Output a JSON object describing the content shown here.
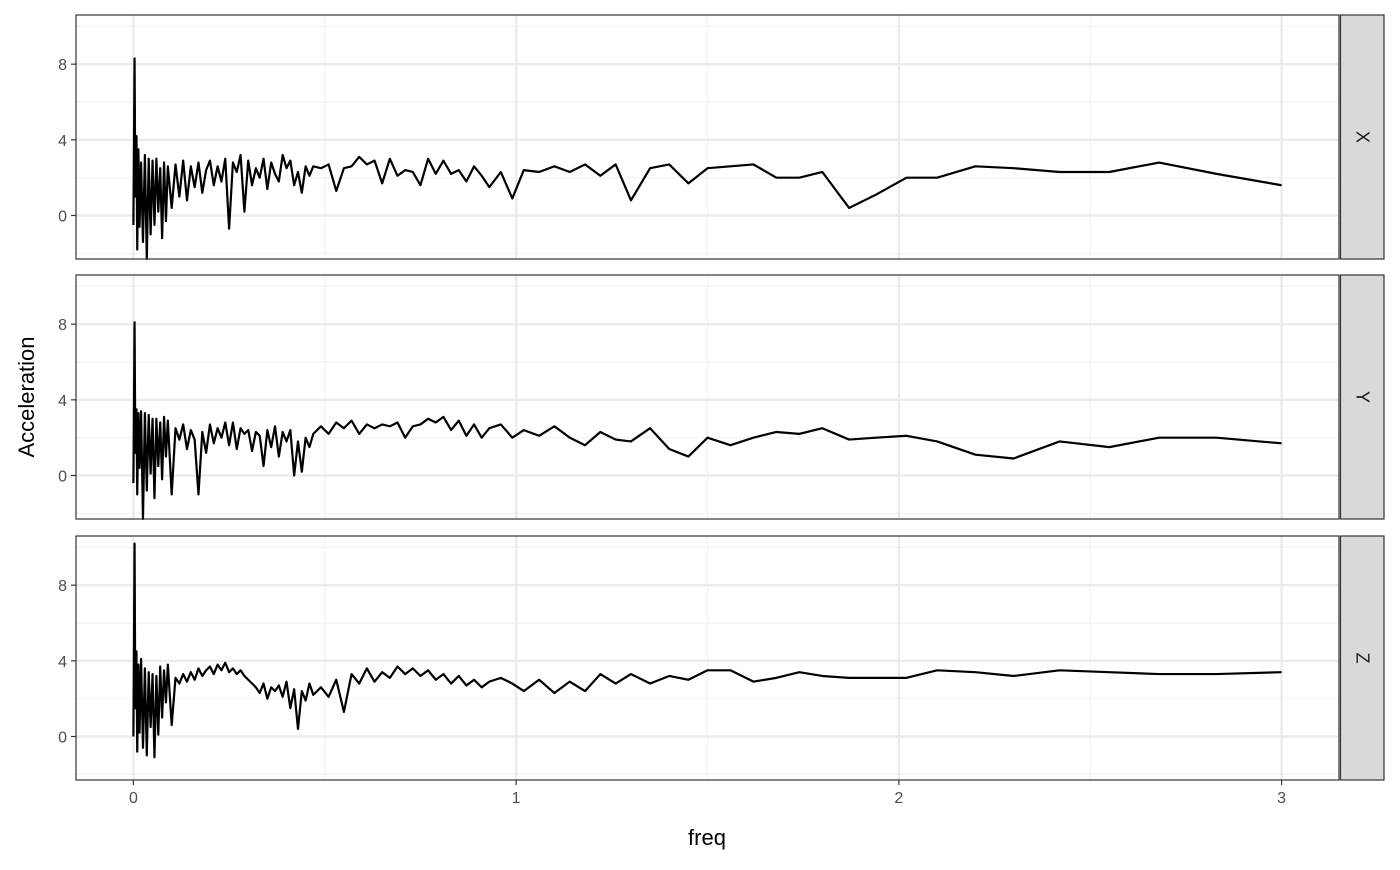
{
  "chart_data": {
    "type": "line",
    "layout": "faceted-rows",
    "xlabel": "freq",
    "ylabel": "Acceleration",
    "xlim": [
      -0.15,
      3.15
    ],
    "ylim": [
      -2.3,
      10.6
    ],
    "x_ticks": [
      0,
      1,
      2,
      3
    ],
    "x_tick_labels": [
      "0",
      "1",
      "2",
      "3"
    ],
    "y_ticks": [
      0,
      4,
      8
    ],
    "y_tick_labels": [
      "0",
      "4",
      "8"
    ],
    "grid": true,
    "legend": "none",
    "line_color": "#000000",
    "strip_color": "#d9d9d9",
    "panels": [
      {
        "strip": "X",
        "series": [
          {
            "x": [
              0.0,
              0.003,
              0.005,
              0.008,
              0.01,
              0.013,
              0.016,
              0.02,
              0.025,
              0.03,
              0.035,
              0.04,
              0.045,
              0.05,
              0.055,
              0.06,
              0.065,
              0.07,
              0.075,
              0.08,
              0.085,
              0.09,
              0.1,
              0.11,
              0.12,
              0.13,
              0.14,
              0.15,
              0.16,
              0.17,
              0.18,
              0.19,
              0.2,
              0.21,
              0.22,
              0.23,
              0.24,
              0.25,
              0.26,
              0.27,
              0.28,
              0.29,
              0.3,
              0.31,
              0.32,
              0.33,
              0.34,
              0.35,
              0.36,
              0.37,
              0.38,
              0.39,
              0.4,
              0.41,
              0.42,
              0.43,
              0.44,
              0.45,
              0.46,
              0.47,
              0.49,
              0.51,
              0.53,
              0.55,
              0.57,
              0.59,
              0.61,
              0.63,
              0.65,
              0.67,
              0.69,
              0.71,
              0.73,
              0.75,
              0.77,
              0.79,
              0.81,
              0.83,
              0.85,
              0.87,
              0.89,
              0.91,
              0.93,
              0.96,
              0.99,
              1.02,
              1.06,
              1.1,
              1.14,
              1.18,
              1.22,
              1.26,
              1.3,
              1.35,
              1.4,
              1.45,
              1.5,
              1.56,
              1.62,
              1.68,
              1.74,
              1.8,
              1.87,
              1.94,
              2.02,
              2.1,
              2.2,
              2.3,
              2.42,
              2.55,
              2.68,
              2.83,
              3.0
            ],
            "y": [
              -0.5,
              8.3,
              1.0,
              4.2,
              -1.8,
              3.5,
              -0.6,
              2.8,
              -1.4,
              3.2,
              -2.3,
              3.0,
              -1.0,
              2.9,
              -0.5,
              3.0,
              0.2,
              2.5,
              -1.2,
              2.8,
              -0.3,
              2.6,
              0.4,
              2.7,
              1.0,
              2.9,
              0.8,
              2.6,
              1.5,
              2.8,
              1.2,
              2.4,
              2.9,
              1.6,
              2.6,
              1.8,
              3.0,
              -0.7,
              2.8,
              2.3,
              3.2,
              0.2,
              2.9,
              1.6,
              2.5,
              2.0,
              3.0,
              1.4,
              2.8,
              2.2,
              1.8,
              3.2,
              2.5,
              2.9,
              1.6,
              2.3,
              1.2,
              2.6,
              2.1,
              2.6,
              2.5,
              2.7,
              1.3,
              2.5,
              2.6,
              3.1,
              2.7,
              2.9,
              1.7,
              3.0,
              2.1,
              2.4,
              2.3,
              1.6,
              3.0,
              2.2,
              2.9,
              2.2,
              2.4,
              1.8,
              2.6,
              2.1,
              1.5,
              2.3,
              0.9,
              2.4,
              2.3,
              2.6,
              2.3,
              2.7,
              2.1,
              2.7,
              0.8,
              2.5,
              2.7,
              1.7,
              2.5,
              2.6,
              2.7,
              2.0,
              2.0,
              2.3,
              0.4,
              1.1,
              2.0,
              2.0,
              2.6,
              2.5,
              2.3,
              2.3,
              2.8,
              2.2,
              1.6
            ]
          }
        ]
      },
      {
        "strip": "Y",
        "series": [
          {
            "x": [
              0.0,
              0.003,
              0.005,
              0.008,
              0.01,
              0.013,
              0.016,
              0.02,
              0.025,
              0.03,
              0.035,
              0.04,
              0.045,
              0.05,
              0.055,
              0.06,
              0.065,
              0.07,
              0.075,
              0.08,
              0.085,
              0.09,
              0.1,
              0.11,
              0.12,
              0.13,
              0.14,
              0.15,
              0.16,
              0.17,
              0.18,
              0.19,
              0.2,
              0.21,
              0.22,
              0.23,
              0.24,
              0.25,
              0.26,
              0.27,
              0.28,
              0.29,
              0.3,
              0.31,
              0.32,
              0.33,
              0.34,
              0.35,
              0.36,
              0.37,
              0.38,
              0.39,
              0.4,
              0.41,
              0.42,
              0.43,
              0.44,
              0.45,
              0.46,
              0.47,
              0.49,
              0.51,
              0.53,
              0.55,
              0.57,
              0.59,
              0.61,
              0.63,
              0.65,
              0.67,
              0.69,
              0.71,
              0.73,
              0.75,
              0.77,
              0.79,
              0.81,
              0.83,
              0.85,
              0.87,
              0.89,
              0.91,
              0.93,
              0.96,
              0.99,
              1.02,
              1.06,
              1.1,
              1.14,
              1.18,
              1.22,
              1.26,
              1.3,
              1.35,
              1.4,
              1.45,
              1.5,
              1.56,
              1.62,
              1.68,
              1.74,
              1.8,
              1.87,
              1.94,
              2.02,
              2.1,
              2.2,
              2.3,
              2.42,
              2.55,
              2.68,
              2.83,
              3.0
            ],
            "y": [
              -0.4,
              8.1,
              1.2,
              3.5,
              -1.0,
              3.3,
              0.4,
              3.4,
              -2.3,
              3.3,
              -0.8,
              3.2,
              0.1,
              3.0,
              -1.2,
              3.0,
              0.5,
              2.8,
              -0.2,
              3.1,
              1.0,
              2.9,
              -1.0,
              2.5,
              1.9,
              2.7,
              1.4,
              2.4,
              1.9,
              -1.0,
              2.3,
              1.2,
              2.7,
              1.7,
              2.5,
              2.0,
              2.8,
              1.6,
              2.8,
              1.4,
              2.5,
              2.2,
              2.4,
              1.3,
              2.3,
              2.1,
              0.5,
              2.4,
              1.5,
              2.6,
              1.0,
              2.3,
              1.8,
              2.4,
              0.0,
              1.8,
              0.2,
              2.0,
              1.5,
              2.2,
              2.6,
              2.2,
              2.8,
              2.5,
              2.9,
              2.2,
              2.7,
              2.5,
              2.7,
              2.6,
              2.8,
              2.0,
              2.6,
              2.7,
              3.0,
              2.8,
              3.1,
              2.4,
              2.9,
              2.1,
              2.7,
              2.0,
              2.5,
              2.7,
              2.0,
              2.4,
              2.1,
              2.6,
              2.0,
              1.6,
              2.3,
              1.9,
              1.8,
              2.5,
              1.4,
              1.0,
              2.0,
              1.6,
              2.0,
              2.3,
              2.2,
              2.5,
              1.9,
              2.0,
              2.1,
              1.8,
              1.1,
              0.9,
              1.8,
              1.5,
              2.0,
              2.0,
              1.7
            ]
          }
        ]
      },
      {
        "strip": "Z",
        "series": [
          {
            "x": [
              0.0,
              0.003,
              0.005,
              0.008,
              0.01,
              0.013,
              0.016,
              0.02,
              0.025,
              0.03,
              0.035,
              0.04,
              0.045,
              0.05,
              0.055,
              0.06,
              0.065,
              0.07,
              0.075,
              0.08,
              0.085,
              0.09,
              0.1,
              0.11,
              0.12,
              0.13,
              0.14,
              0.15,
              0.16,
              0.17,
              0.18,
              0.19,
              0.2,
              0.21,
              0.22,
              0.23,
              0.24,
              0.25,
              0.26,
              0.27,
              0.28,
              0.29,
              0.3,
              0.31,
              0.32,
              0.33,
              0.34,
              0.35,
              0.36,
              0.37,
              0.38,
              0.39,
              0.4,
              0.41,
              0.42,
              0.43,
              0.44,
              0.45,
              0.46,
              0.47,
              0.49,
              0.51,
              0.53,
              0.55,
              0.57,
              0.59,
              0.61,
              0.63,
              0.65,
              0.67,
              0.69,
              0.71,
              0.73,
              0.75,
              0.77,
              0.79,
              0.81,
              0.83,
              0.85,
              0.87,
              0.89,
              0.91,
              0.93,
              0.96,
              0.99,
              1.02,
              1.06,
              1.1,
              1.14,
              1.18,
              1.22,
              1.26,
              1.3,
              1.35,
              1.4,
              1.45,
              1.5,
              1.56,
              1.62,
              1.68,
              1.74,
              1.8,
              1.87,
              1.94,
              2.02,
              2.1,
              2.2,
              2.3,
              2.42,
              2.55,
              2.68,
              2.83,
              3.0
            ],
            "y": [
              0.0,
              10.2,
              1.5,
              4.5,
              -0.8,
              3.8,
              0.2,
              4.1,
              -0.6,
              3.6,
              -1.0,
              3.4,
              0.5,
              3.3,
              -1.1,
              3.2,
              0.1,
              3.7,
              1.0,
              3.5,
              1.8,
              3.8,
              0.6,
              3.1,
              2.8,
              3.3,
              2.9,
              3.4,
              3.0,
              3.6,
              3.2,
              3.5,
              3.7,
              3.3,
              3.8,
              3.5,
              3.9,
              3.4,
              3.6,
              3.3,
              3.5,
              3.2,
              3.0,
              2.8,
              2.6,
              2.3,
              2.8,
              2.0,
              2.6,
              2.4,
              2.7,
              2.1,
              2.9,
              1.5,
              2.5,
              0.4,
              2.4,
              1.9,
              2.8,
              2.2,
              2.6,
              2.1,
              3.0,
              1.3,
              3.3,
              2.8,
              3.6,
              2.9,
              3.4,
              3.1,
              3.7,
              3.3,
              3.6,
              3.2,
              3.5,
              3.0,
              3.3,
              2.8,
              3.2,
              2.7,
              3.0,
              2.6,
              2.9,
              3.1,
              2.8,
              2.4,
              3.0,
              2.3,
              2.9,
              2.4,
              3.3,
              2.8,
              3.3,
              2.8,
              3.2,
              3.0,
              3.5,
              3.5,
              2.9,
              3.1,
              3.4,
              3.2,
              3.1,
              3.1,
              3.1,
              3.5,
              3.4,
              3.2,
              3.5,
              3.4,
              3.3,
              3.3,
              3.4
            ]
          }
        ]
      }
    ]
  }
}
